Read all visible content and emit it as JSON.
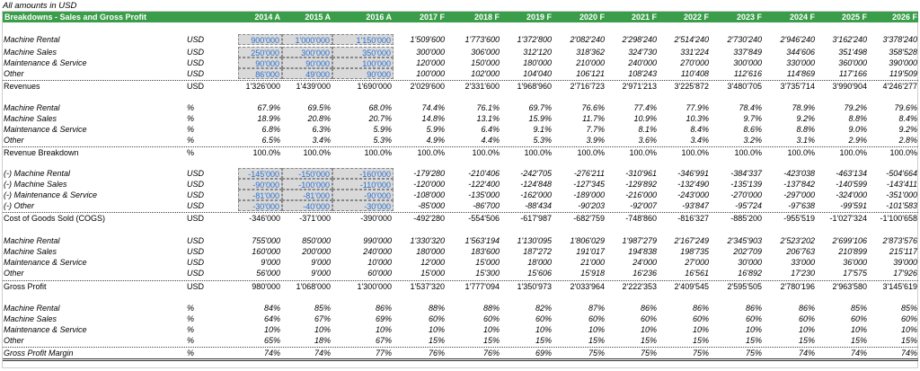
{
  "note": "All amounts in USD",
  "header": {
    "title": "Breakdowns - Sales and Gross Profit",
    "years": [
      "2014 A",
      "2015 A",
      "2016 A",
      "2017 F",
      "2018 F",
      "2019 F",
      "2020 F",
      "2021 F",
      "2022 F",
      "2023 F",
      "2024 F",
      "2025 F",
      "2026 F"
    ]
  },
  "colors": {
    "header_bg": "#3a9d4a",
    "input_bg": "#d9d9d9",
    "input_text": "#2a6fcf"
  },
  "rows": [
    {
      "label": "Machine Rental",
      "unit": "USD",
      "style": "it",
      "input": true,
      "values": [
        "900'000",
        "1'000'000",
        "1'150'000",
        "1'509'600",
        "1'773'600",
        "1'372'800",
        "2'082'240",
        "2'298'240",
        "2'514'240",
        "2'730'240",
        "2'946'240",
        "3'162'240",
        "3'378'240"
      ]
    },
    {
      "label": "Machine Sales",
      "unit": "USD",
      "style": "it",
      "input": true,
      "values": [
        "250'000",
        "300'000",
        "350'000",
        "300'000",
        "306'000",
        "312'120",
        "318'362",
        "324'730",
        "331'224",
        "337'849",
        "344'606",
        "351'498",
        "358'528"
      ]
    },
    {
      "label": "Maintenance & Service",
      "unit": "USD",
      "style": "it",
      "input": true,
      "values": [
        "90'000",
        "90'000",
        "100'000",
        "120'000",
        "150'000",
        "180'000",
        "210'000",
        "240'000",
        "270'000",
        "300'000",
        "330'000",
        "360'000",
        "390'000"
      ]
    },
    {
      "label": "Other",
      "unit": "USD",
      "style": "it",
      "input": true,
      "values": [
        "86'000",
        "49'000",
        "90'000",
        "100'000",
        "102'000",
        "104'040",
        "106'121",
        "108'243",
        "110'408",
        "112'616",
        "114'869",
        "117'166",
        "119'509"
      ]
    },
    {
      "label": "Revenues",
      "unit": "USD",
      "style": "total",
      "input": false,
      "values": [
        "1'326'000",
        "1'439'000",
        "1'690'000",
        "2'029'600",
        "2'331'600",
        "1'968'960",
        "2'716'723",
        "2'971'213",
        "3'225'872",
        "3'480'705",
        "3'735'714",
        "3'990'904",
        "4'246'277"
      ]
    },
    {
      "label": "Machine Rental",
      "unit": "%",
      "style": "it",
      "input": false,
      "values": [
        "67.9%",
        "69.5%",
        "68.0%",
        "74.4%",
        "76.1%",
        "69.7%",
        "76.6%",
        "77.4%",
        "77.9%",
        "78.4%",
        "78.9%",
        "79.2%",
        "79.6%"
      ]
    },
    {
      "label": "Machine Sales",
      "unit": "%",
      "style": "it",
      "input": false,
      "values": [
        "18.9%",
        "20.8%",
        "20.7%",
        "14.8%",
        "13.1%",
        "15.9%",
        "11.7%",
        "10.9%",
        "10.3%",
        "9.7%",
        "9.2%",
        "8.8%",
        "8.4%"
      ]
    },
    {
      "label": "Maintenance & Service",
      "unit": "%",
      "style": "it",
      "input": false,
      "values": [
        "6.8%",
        "6.3%",
        "5.9%",
        "5.9%",
        "6.4%",
        "9.1%",
        "7.7%",
        "8.1%",
        "8.4%",
        "8.6%",
        "8.8%",
        "9.0%",
        "9.2%"
      ]
    },
    {
      "label": "Other",
      "unit": "%",
      "style": "it",
      "input": false,
      "values": [
        "6.5%",
        "3.4%",
        "5.3%",
        "4.9%",
        "4.4%",
        "5.3%",
        "3.9%",
        "3.6%",
        "3.4%",
        "3.2%",
        "3.1%",
        "2.9%",
        "2.8%"
      ]
    },
    {
      "label": "Revenue Breakdown",
      "unit": "%",
      "style": "total",
      "input": false,
      "values": [
        "100.0%",
        "100.0%",
        "100.0%",
        "100.0%",
        "100.0%",
        "100.0%",
        "100.0%",
        "100.0%",
        "100.0%",
        "100.0%",
        "100.0%",
        "100.0%",
        "100.0%"
      ]
    },
    {
      "label": "(-) Machine Rental",
      "unit": "USD",
      "style": "it",
      "input": true,
      "values": [
        "-145'000",
        "-150'000",
        "-160'000",
        "-179'280",
        "-210'406",
        "-242'705",
        "-276'211",
        "-310'961",
        "-346'991",
        "-384'337",
        "-423'038",
        "-463'134",
        "-504'664"
      ]
    },
    {
      "label": "(-) Machine Sales",
      "unit": "USD",
      "style": "it",
      "input": true,
      "values": [
        "-90'000",
        "-100'000",
        "-110'000",
        "-120'000",
        "-122'400",
        "-124'848",
        "-127'345",
        "-129'892",
        "-132'490",
        "-135'139",
        "-137'842",
        "-140'599",
        "-143'411"
      ]
    },
    {
      "label": "(-) Maintenance & Service",
      "unit": "USD",
      "style": "it",
      "input": true,
      "values": [
        "-81'000",
        "-81'000",
        "-90'000",
        "-108'000",
        "-135'000",
        "-162'000",
        "-189'000",
        "-216'000",
        "-243'000",
        "-270'000",
        "-297'000",
        "-324'000",
        "-351'000"
      ]
    },
    {
      "label": "(-) Other",
      "unit": "USD",
      "style": "it",
      "input": true,
      "values": [
        "-30'000",
        "-40'000",
        "-30'000",
        "-85'000",
        "-86'700",
        "-88'434",
        "-90'203",
        "-92'007",
        "-93'847",
        "-95'724",
        "-97'638",
        "-99'591",
        "-101'583"
      ]
    },
    {
      "label": "Cost of Goods Sold (COGS)",
      "unit": "USD",
      "style": "total",
      "input": false,
      "values": [
        "-346'000",
        "-371'000",
        "-390'000",
        "-492'280",
        "-554'506",
        "-617'987",
        "-682'759",
        "-748'860",
        "-816'327",
        "-885'200",
        "-955'519",
        "-1'027'324",
        "-1'100'658"
      ]
    },
    {
      "label": "Machine Rental",
      "unit": "USD",
      "style": "it",
      "input": false,
      "values": [
        "755'000",
        "850'000",
        "990'000",
        "1'330'320",
        "1'563'194",
        "1'130'095",
        "1'806'029",
        "1'987'279",
        "2'167'249",
        "2'345'903",
        "2'523'202",
        "2'699'106",
        "2'873'576"
      ]
    },
    {
      "label": "Machine Sales",
      "unit": "USD",
      "style": "it",
      "input": false,
      "values": [
        "160'000",
        "200'000",
        "240'000",
        "180'000",
        "183'600",
        "187'272",
        "191'017",
        "194'838",
        "198'735",
        "202'709",
        "206'763",
        "210'899",
        "215'117"
      ]
    },
    {
      "label": "Maintenance & Service",
      "unit": "USD",
      "style": "it",
      "input": false,
      "values": [
        "9'000",
        "9'000",
        "10'000",
        "12'000",
        "15'000",
        "18'000",
        "21'000",
        "24'000",
        "27'000",
        "30'000",
        "33'000",
        "36'000",
        "39'000"
      ]
    },
    {
      "label": "Other",
      "unit": "USD",
      "style": "it",
      "input": false,
      "values": [
        "56'000",
        "9'000",
        "60'000",
        "15'000",
        "15'300",
        "15'606",
        "15'918",
        "16'236",
        "16'561",
        "16'892",
        "17'230",
        "17'575",
        "17'926"
      ]
    },
    {
      "label": "Gross Profit",
      "unit": "USD",
      "style": "total",
      "input": false,
      "values": [
        "980'000",
        "1'068'000",
        "1'300'000",
        "1'537'320",
        "1'777'094",
        "1'350'973",
        "2'033'964",
        "2'222'353",
        "2'409'545",
        "2'595'505",
        "2'780'196",
        "2'963'580",
        "3'145'619"
      ]
    },
    {
      "label": "Machine Rental",
      "unit": "%",
      "style": "it",
      "input": false,
      "values": [
        "84%",
        "85%",
        "86%",
        "88%",
        "88%",
        "82%",
        "87%",
        "86%",
        "86%",
        "86%",
        "86%",
        "85%",
        "85%"
      ]
    },
    {
      "label": "Machine Sales",
      "unit": "%",
      "style": "it",
      "input": false,
      "values": [
        "64%",
        "67%",
        "69%",
        "60%",
        "60%",
        "60%",
        "60%",
        "60%",
        "60%",
        "60%",
        "60%",
        "60%",
        "60%"
      ]
    },
    {
      "label": "Maintenance & Service",
      "unit": "%",
      "style": "it",
      "input": false,
      "values": [
        "10%",
        "10%",
        "10%",
        "10%",
        "10%",
        "10%",
        "10%",
        "10%",
        "10%",
        "10%",
        "10%",
        "10%",
        "10%"
      ]
    },
    {
      "label": "Other",
      "unit": "%",
      "style": "it",
      "input": false,
      "values": [
        "65%",
        "18%",
        "67%",
        "15%",
        "15%",
        "15%",
        "15%",
        "15%",
        "15%",
        "15%",
        "15%",
        "15%",
        "15%"
      ]
    },
    {
      "label": "Gross Profit Margin",
      "unit": "%",
      "style": "totalit",
      "input": false,
      "values": [
        "74%",
        "74%",
        "77%",
        "76%",
        "76%",
        "69%",
        "75%",
        "75%",
        "75%",
        "75%",
        "74%",
        "74%",
        "74%"
      ]
    }
  ]
}
